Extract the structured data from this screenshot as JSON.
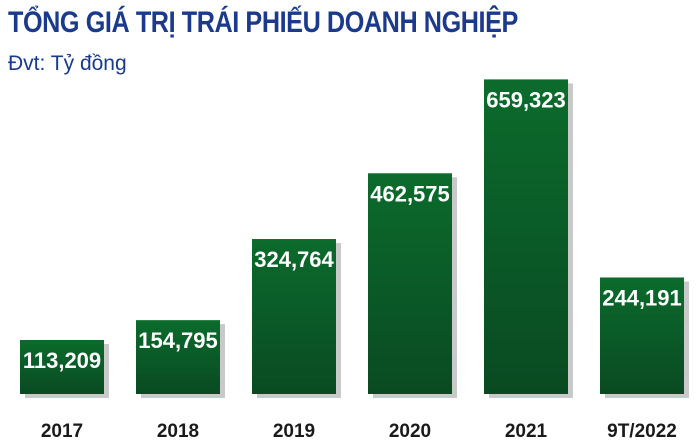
{
  "chart_data": {
    "type": "bar",
    "title": "TỔNG GIÁ TRỊ TRÁI PHIẾU DOANH NGHIỆP",
    "unit": "Đvt: Tỷ đồng",
    "categories": [
      "2017",
      "2018",
      "2019",
      "2020",
      "2021",
      "9T/2022"
    ],
    "values": [
      113209,
      154795,
      324764,
      462575,
      659323,
      244191
    ],
    "value_labels": [
      "113,209",
      "154,795",
      "324,764",
      "462,575",
      "659,323",
      "244,191"
    ],
    "ylim": [
      0,
      700000
    ],
    "grid": false,
    "legend": "none",
    "colors": {
      "bar_top": "#0b6b2c",
      "bar_bottom": "#0a4a22",
      "title": "#1b3a8c",
      "shadow": "#c9c9c9"
    }
  }
}
